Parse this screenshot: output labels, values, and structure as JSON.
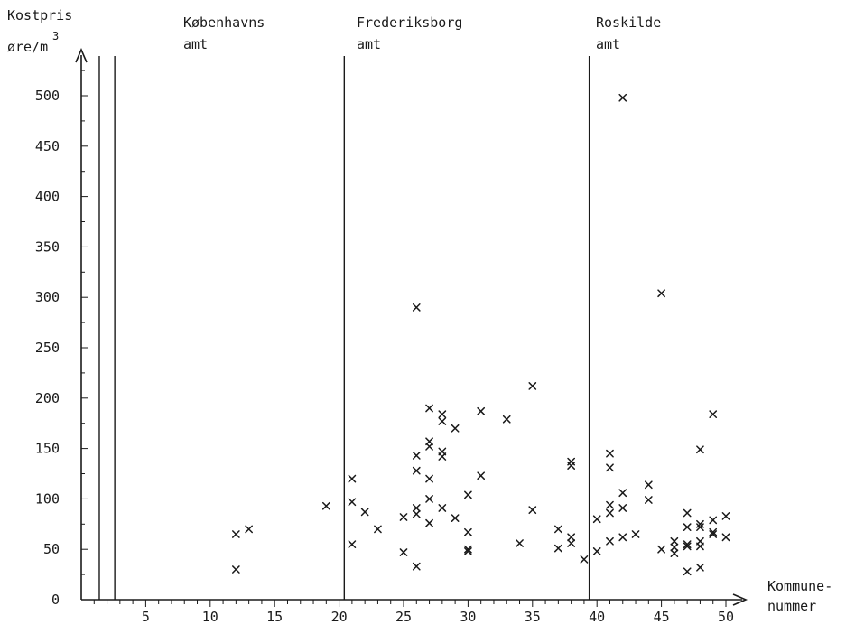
{
  "chart_data": {
    "type": "scatter",
    "ylabel_line1": "Kostpris",
    "ylabel_line2": "øre/m",
    "ylabel_exp": "3",
    "xlabel_line1": "Kommune-",
    "xlabel_line2": "nummer",
    "xlim": [
      0,
      50
    ],
    "ylim": [
      0,
      500
    ],
    "x_ticks": [
      5,
      10,
      15,
      20,
      25,
      30,
      35,
      40,
      45,
      50
    ],
    "y_ticks": [
      0,
      50,
      100,
      150,
      200,
      250,
      300,
      350,
      400,
      450,
      500
    ],
    "regions": [
      {
        "line1": "Københavns",
        "line2": "amt",
        "divider_x": null
      },
      {
        "line1": "Frederiksborg",
        "line2": "amt",
        "divider_x": 20.4
      },
      {
        "line1": "Roskilde",
        "line2": "amt",
        "divider_x": 39.4
      }
    ],
    "extra_dividers": [
      1.4,
      2.6
    ],
    "points": [
      [
        12,
        65
      ],
      [
        12,
        30
      ],
      [
        13,
        70
      ],
      [
        19,
        93
      ],
      [
        21,
        120
      ],
      [
        21,
        97
      ],
      [
        21,
        55
      ],
      [
        22,
        87
      ],
      [
        23,
        70
      ],
      [
        25,
        82
      ],
      [
        25,
        47
      ],
      [
        26,
        290
      ],
      [
        26,
        143
      ],
      [
        26,
        128
      ],
      [
        26,
        91
      ],
      [
        26,
        85
      ],
      [
        26,
        33
      ],
      [
        27,
        190
      ],
      [
        27,
        157
      ],
      [
        27,
        152
      ],
      [
        27,
        120
      ],
      [
        27,
        100
      ],
      [
        27,
        76
      ],
      [
        28,
        184
      ],
      [
        28,
        177
      ],
      [
        28,
        147
      ],
      [
        28,
        142
      ],
      [
        28,
        91
      ],
      [
        29,
        170
      ],
      [
        29,
        81
      ],
      [
        30,
        104
      ],
      [
        30,
        67
      ],
      [
        30,
        50
      ],
      [
        30,
        48
      ],
      [
        31,
        187
      ],
      [
        31,
        123
      ],
      [
        33,
        179
      ],
      [
        34,
        56
      ],
      [
        35,
        212
      ],
      [
        35,
        89
      ],
      [
        37,
        70
      ],
      [
        37,
        51
      ],
      [
        38,
        137
      ],
      [
        38,
        133
      ],
      [
        38,
        62
      ],
      [
        38,
        56
      ],
      [
        39,
        40
      ],
      [
        40,
        80
      ],
      [
        40,
        48
      ],
      [
        41,
        145
      ],
      [
        41,
        131
      ],
      [
        41,
        94
      ],
      [
        41,
        86
      ],
      [
        41,
        58
      ],
      [
        42,
        498
      ],
      [
        42,
        106
      ],
      [
        42,
        91
      ],
      [
        42,
        62
      ],
      [
        43,
        65
      ],
      [
        44,
        114
      ],
      [
        44,
        99
      ],
      [
        45,
        304
      ],
      [
        45,
        50
      ],
      [
        46,
        58
      ],
      [
        46,
        52
      ],
      [
        46,
        46
      ],
      [
        47,
        86
      ],
      [
        47,
        72
      ],
      [
        47,
        55
      ],
      [
        47,
        53
      ],
      [
        47,
        28
      ],
      [
        48,
        149
      ],
      [
        48,
        75
      ],
      [
        48,
        72
      ],
      [
        48,
        58
      ],
      [
        48,
        53
      ],
      [
        48,
        32
      ],
      [
        49,
        184
      ],
      [
        49,
        79
      ],
      [
        49,
        67
      ],
      [
        49,
        65
      ],
      [
        50,
        83
      ],
      [
        50,
        62
      ]
    ]
  }
}
